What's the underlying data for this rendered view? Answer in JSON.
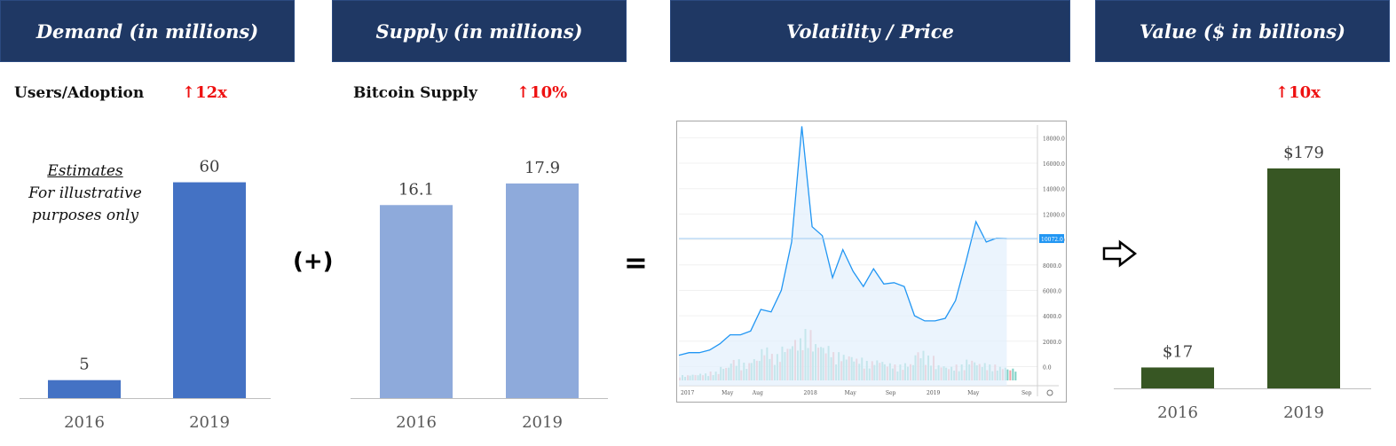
{
  "headers": {
    "demand": "Demand (in millions)",
    "supply": "Supply (in millions)",
    "volatility": "Volatility / Price",
    "value": "Value ($ in billions)"
  },
  "demand": {
    "subtitle": "Users/Adoption",
    "change": "↑12x",
    "note_line1": "Estimates",
    "note_line2": "For illustrative",
    "note_line3": "purposes only"
  },
  "supply": {
    "subtitle": "Bitcoin Supply",
    "change": "↑10%"
  },
  "value": {
    "change": "↑10x"
  },
  "operators": {
    "plus": "(+)",
    "equals": "="
  },
  "colors": {
    "header_bg": "#1f3864",
    "demand_bar": "#4472c4",
    "supply_bar": "#8eaadb",
    "value_bar": "#375623",
    "increase_red": "#ee1111",
    "price_line": "#2196f3"
  },
  "chart_data": [
    {
      "type": "bar",
      "name": "demand",
      "categories": [
        "2016",
        "2019"
      ],
      "values": [
        5,
        60
      ],
      "data_labels": [
        "5",
        "60"
      ],
      "color": "#4472c4",
      "ylim": [
        0,
        70
      ]
    },
    {
      "type": "bar",
      "name": "supply",
      "categories": [
        "2016",
        "2019"
      ],
      "values": [
        16.1,
        17.9
      ],
      "data_labels": [
        "16.1",
        "17.9"
      ],
      "color": "#8eaadb",
      "ylim": [
        0,
        21
      ]
    },
    {
      "type": "line",
      "name": "price",
      "x_tick_labels": [
        "2017",
        "May",
        "Aug",
        "2018",
        "May",
        "Sep",
        "2019",
        "May",
        "Sep"
      ],
      "y_tick_labels": [
        "0.0",
        "2000.0",
        "4000.0",
        "6000.0",
        "8000.0",
        "10000.0",
        "12000.0",
        "14000.0",
        "16000.0",
        "18000.0"
      ],
      "ylim": [
        -1500,
        19000
      ],
      "last_price_label": "10072.0",
      "last_price": 10072,
      "x_months": [
        0,
        1,
        2,
        3,
        4,
        5,
        6,
        7,
        8,
        9,
        10,
        11,
        12,
        13,
        14,
        15,
        16,
        17,
        18,
        19,
        20,
        21,
        22,
        23,
        24,
        25,
        26,
        27,
        28,
        29,
        30,
        31,
        32
      ],
      "prices": [
        900,
        1100,
        1100,
        1300,
        1800,
        2500,
        2500,
        2800,
        4500,
        4300,
        6000,
        9800,
        18900,
        11000,
        10300,
        7000,
        9200,
        7500,
        6300,
        7700,
        6500,
        6600,
        6300,
        4000,
        3600,
        3600,
        3800,
        5200,
        8200,
        11400,
        9800,
        10100,
        10072
      ],
      "volumes": [
        300,
        350,
        400,
        500,
        800,
        1200,
        1000,
        1300,
        1900,
        1500,
        2000,
        2400,
        2900,
        2200,
        2000,
        1600,
        1500,
        1300,
        1100,
        1200,
        1000,
        900,
        1000,
        1700,
        1400,
        900,
        800,
        900,
        1200,
        1000,
        900,
        800,
        700
      ]
    },
    {
      "type": "bar",
      "name": "value",
      "categories": [
        "2016",
        "2019"
      ],
      "values": [
        17,
        179
      ],
      "data_labels": [
        "$17",
        "$179"
      ],
      "color": "#375623",
      "ylim": [
        0,
        197
      ]
    }
  ]
}
